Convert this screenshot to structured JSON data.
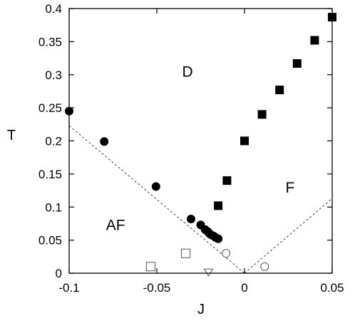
{
  "chart_data": {
    "type": "scatter",
    "xlabel": "J",
    "ylabel": "T",
    "xlim": [
      -0.1,
      0.05
    ],
    "ylim": [
      0,
      0.4
    ],
    "grid": false,
    "legend": "none",
    "x_ticks": [
      -0.1,
      -0.05,
      0,
      0.05
    ],
    "x_tick_labels": [
      "-0.1",
      "-0.05",
      "0",
      "0.05"
    ],
    "y_ticks": [
      0,
      0.05,
      0.1,
      0.15,
      0.2,
      0.25,
      0.3,
      0.35,
      0.4
    ],
    "y_tick_labels": [
      "0",
      "0.05",
      "0.1",
      "0.15",
      "0.2",
      "0.25",
      "0.3",
      "0.35",
      "0.4"
    ],
    "annotations": [
      {
        "text": "D",
        "x": -0.0325,
        "y": 0.297
      },
      {
        "text": "F",
        "x": 0.026,
        "y": 0.122
      },
      {
        "text": "AF",
        "x": -0.0735,
        "y": 0.065
      }
    ],
    "series": [
      {
        "marker": "filled-square",
        "x": [
          -0.015,
          -0.01,
          0.0,
          0.01,
          0.02,
          0.03,
          0.04,
          0.05
        ],
        "y": [
          0.102,
          0.14,
          0.2,
          0.24,
          0.277,
          0.317,
          0.352,
          0.387
        ]
      },
      {
        "marker": "filled-circle",
        "x": [
          -0.1,
          -0.08,
          -0.0505,
          -0.0305,
          -0.025,
          -0.0225,
          -0.021,
          -0.02,
          -0.019,
          -0.0175,
          -0.0165,
          -0.015
        ],
        "y": [
          0.245,
          0.199,
          0.131,
          0.082,
          0.073,
          0.066,
          0.063,
          0.06,
          0.058,
          0.056,
          0.054,
          0.052
        ]
      },
      {
        "marker": "open-circle",
        "x": [
          -0.0105,
          0.0115
        ],
        "y": [
          0.03,
          0.01
        ]
      },
      {
        "marker": "open-square",
        "x": [
          -0.0535,
          -0.0335
        ],
        "y": [
          0.01,
          0.03
        ]
      },
      {
        "marker": "open-triangle-down",
        "x": [
          -0.0205
        ],
        "y": [
          0.001
        ]
      }
    ],
    "lines": [
      {
        "style": "dashed",
        "x": [
          -0.1,
          0.0
        ],
        "y": [
          0.223,
          0.0
        ]
      },
      {
        "style": "dashed",
        "x": [
          0.0,
          0.05
        ],
        "y": [
          0.0,
          0.113
        ]
      }
    ]
  }
}
